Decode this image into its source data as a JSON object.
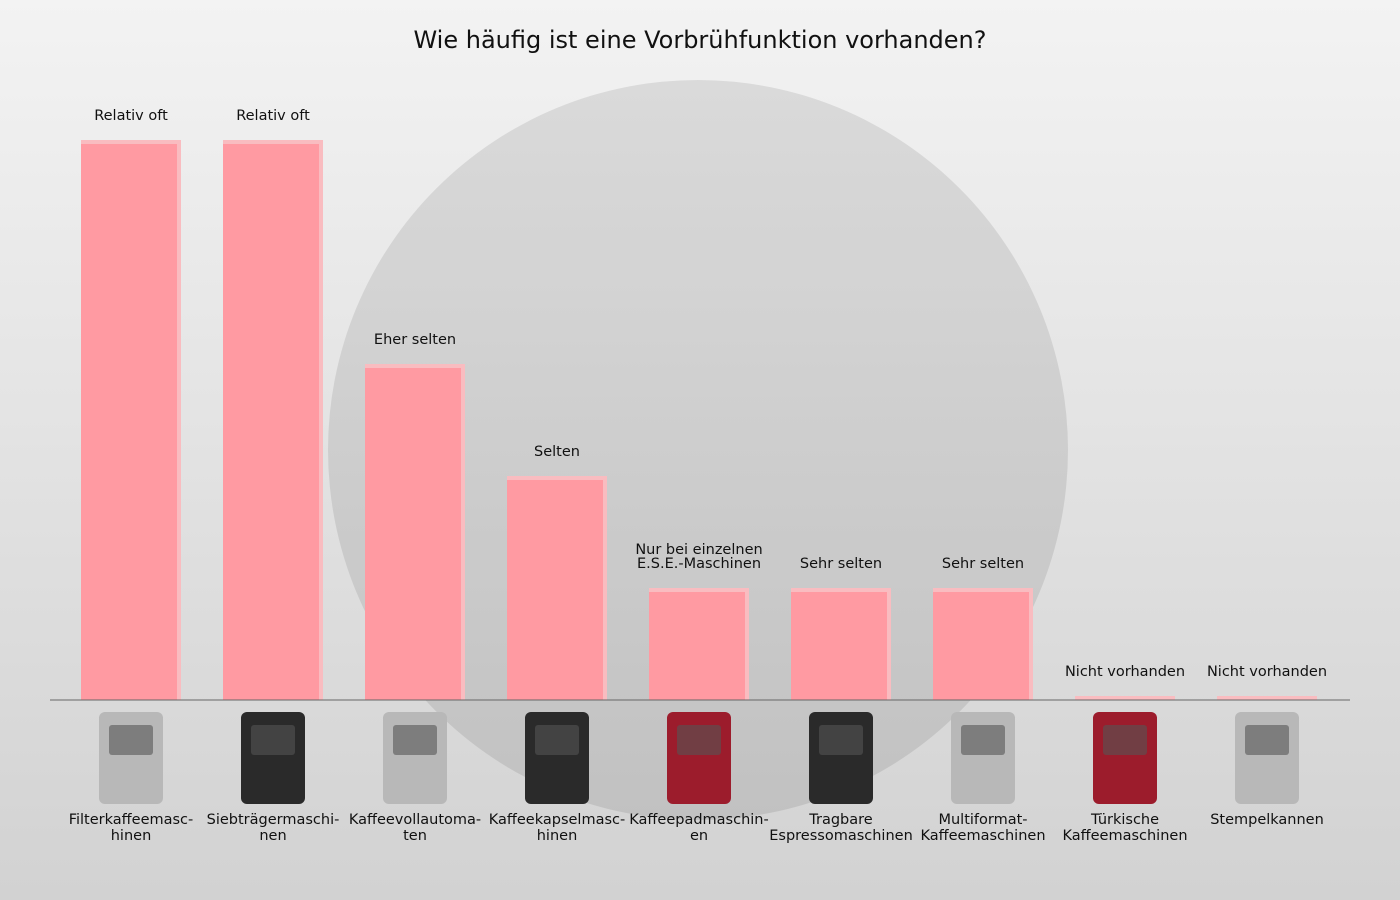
{
  "chart_data": {
    "type": "bar",
    "title": "Wie häufig ist eine Vorbrühfunktion vorhanden?",
    "xlabel": "",
    "ylabel": "",
    "ylim": [
      0,
      5
    ],
    "grid": false,
    "level_scale": {
      "0": "Nicht vorhanden",
      "1": "Sehr selten",
      "2": "Selten",
      "3": "Eher selten",
      "5": "Relativ oft"
    },
    "categories": [
      [
        "Filterkaffeemasc-",
        "hinen"
      ],
      [
        "Siebträgermaschi-",
        "nen"
      ],
      [
        "Kaffeevollautoma-",
        "ten"
      ],
      [
        "Kaffeekapselmasc-",
        "hinen"
      ],
      [
        "Kaffeepadmaschin-",
        "en"
      ],
      [
        "Tragbare",
        "Espressomaschinen"
      ],
      [
        "Multiformat-",
        "Kaffeemaschinen"
      ],
      [
        "Türkische",
        "Kaffeemaschinen"
      ],
      [
        "Stempelkannen"
      ]
    ],
    "values": [
      5,
      5,
      3,
      2,
      1,
      1,
      1,
      0,
      0
    ],
    "data_labels": [
      [
        "Relativ oft"
      ],
      [
        "Relativ oft"
      ],
      [
        "Eher selten"
      ],
      [
        "Selten"
      ],
      [
        "Nur bei einzelnen",
        "E.S.E.-Maschinen"
      ],
      [
        "Sehr selten"
      ],
      [
        "Sehr selten"
      ],
      [
        "Nicht vorhanden"
      ],
      [
        "Nicht vorhanden"
      ]
    ],
    "bar_color": "#ff9aa2",
    "bar_edge_color": "#f9bcc0"
  }
}
